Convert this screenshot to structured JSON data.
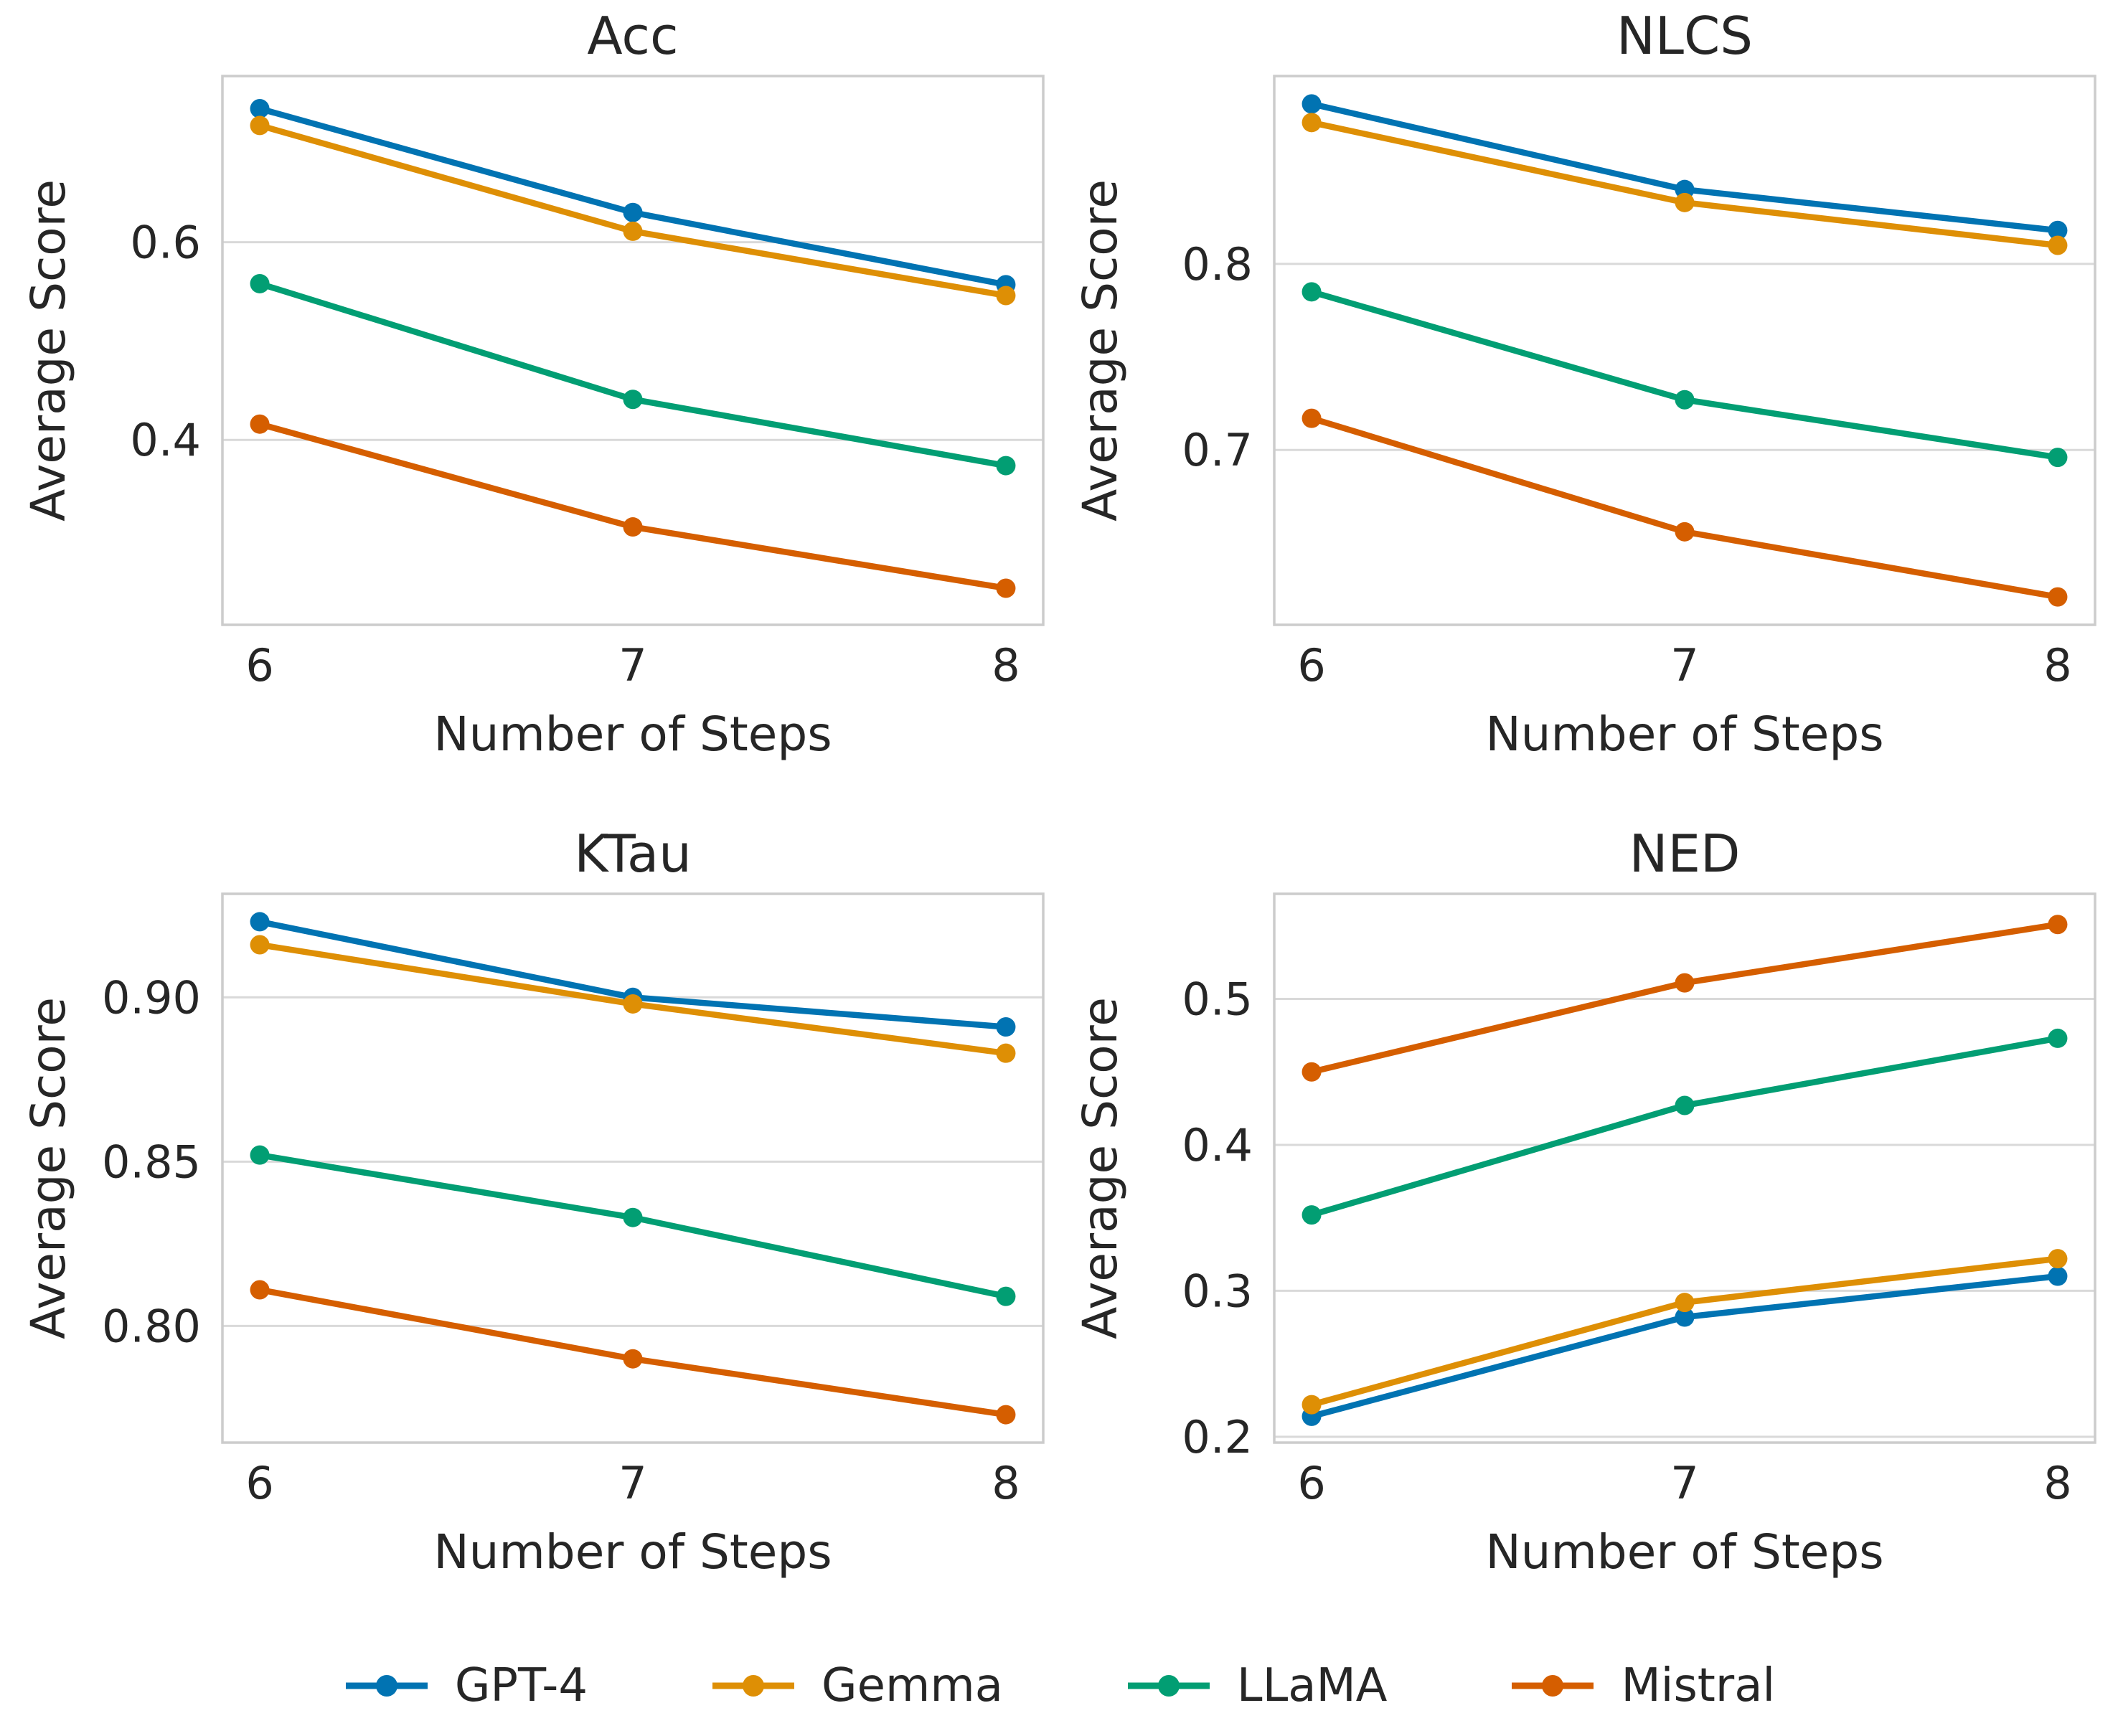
{
  "figure": {
    "background": "#ffffff",
    "text_color": "#262626",
    "grid_color": "#d9d9d9",
    "spine_color": "#cccccc"
  },
  "legend": {
    "position": "bottom-center",
    "items": [
      {
        "name": "GPT-4",
        "color": "#0173B2"
      },
      {
        "name": "Gemma",
        "color": "#DE8F05"
      },
      {
        "name": "LLaMA",
        "color": "#029E73"
      },
      {
        "name": "Mistral",
        "color": "#D55E00"
      }
    ]
  },
  "chart_data": [
    {
      "type": "line",
      "title": "Acc",
      "xlabel": "Number of Steps",
      "ylabel": "Average Score",
      "categories": [
        6,
        7,
        8
      ],
      "ylim": [
        0.213,
        0.768
      ],
      "yticks": [
        {
          "value": 0.6,
          "label": "0.6"
        },
        {
          "value": 0.4,
          "label": "0.4"
        }
      ],
      "grid": "horizontal",
      "legend_position": "none",
      "series": [
        {
          "name": "GPT-4",
          "color": "#0173B2",
          "values": [
            0.735,
            0.63,
            0.557
          ]
        },
        {
          "name": "Gemma",
          "color": "#DE8F05",
          "values": [
            0.718,
            0.611,
            0.546
          ]
        },
        {
          "name": "LLaMA",
          "color": "#029E73",
          "values": [
            0.558,
            0.441,
            0.374
          ]
        },
        {
          "name": "Mistral",
          "color": "#D55E00",
          "values": [
            0.416,
            0.312,
            0.25
          ]
        }
      ]
    },
    {
      "type": "line",
      "title": "NLCS",
      "xlabel": "Number of Steps",
      "ylabel": "Average Score",
      "categories": [
        6,
        7,
        8
      ],
      "ylim": [
        0.606,
        0.901
      ],
      "yticks": [
        {
          "value": 0.8,
          "label": "0.8"
        },
        {
          "value": 0.7,
          "label": "0.7"
        }
      ],
      "grid": "horizontal",
      "legend_position": "none",
      "series": [
        {
          "name": "GPT-4",
          "color": "#0173B2",
          "values": [
            0.886,
            0.84,
            0.818
          ]
        },
        {
          "name": "Gemma",
          "color": "#DE8F05",
          "values": [
            0.876,
            0.833,
            0.81
          ]
        },
        {
          "name": "LLaMA",
          "color": "#029E73",
          "values": [
            0.785,
            0.727,
            0.696
          ]
        },
        {
          "name": "Mistral",
          "color": "#D55E00",
          "values": [
            0.717,
            0.656,
            0.621
          ]
        }
      ]
    },
    {
      "type": "line",
      "title": "KTau",
      "xlabel": "Number of Steps",
      "ylabel": "Average Score",
      "categories": [
        6,
        7,
        8
      ],
      "ylim": [
        0.7645,
        0.9315
      ],
      "yticks": [
        {
          "value": 0.9,
          "label": "0.90"
        },
        {
          "value": 0.85,
          "label": "0.85"
        },
        {
          "value": 0.8,
          "label": "0.80"
        }
      ],
      "grid": "horizontal",
      "legend_position": "none",
      "series": [
        {
          "name": "GPT-4",
          "color": "#0173B2",
          "values": [
            0.923,
            0.9,
            0.891
          ]
        },
        {
          "name": "Gemma",
          "color": "#DE8F05",
          "values": [
            0.916,
            0.898,
            0.883
          ]
        },
        {
          "name": "LLaMA",
          "color": "#029E73",
          "values": [
            0.852,
            0.833,
            0.809
          ]
        },
        {
          "name": "Mistral",
          "color": "#D55E00",
          "values": [
            0.811,
            0.79,
            0.773
          ]
        }
      ]
    },
    {
      "type": "line",
      "title": "NED",
      "xlabel": "Number of Steps",
      "ylabel": "Average Score",
      "categories": [
        6,
        7,
        8
      ],
      "ylim": [
        0.196,
        0.572
      ],
      "yticks": [
        {
          "value": 0.5,
          "label": "0.5"
        },
        {
          "value": 0.4,
          "label": "0.4"
        },
        {
          "value": 0.3,
          "label": "0.3"
        },
        {
          "value": 0.2,
          "label": "0.2"
        }
      ],
      "grid": "horizontal",
      "legend_position": "none",
      "series": [
        {
          "name": "GPT-4",
          "color": "#0173B2",
          "values": [
            0.214,
            0.282,
            0.31
          ]
        },
        {
          "name": "Gemma",
          "color": "#DE8F05",
          "values": [
            0.222,
            0.292,
            0.322
          ]
        },
        {
          "name": "LLaMA",
          "color": "#029E73",
          "values": [
            0.352,
            0.427,
            0.473
          ]
        },
        {
          "name": "Mistral",
          "color": "#D55E00",
          "values": [
            0.45,
            0.511,
            0.551
          ]
        }
      ]
    }
  ]
}
